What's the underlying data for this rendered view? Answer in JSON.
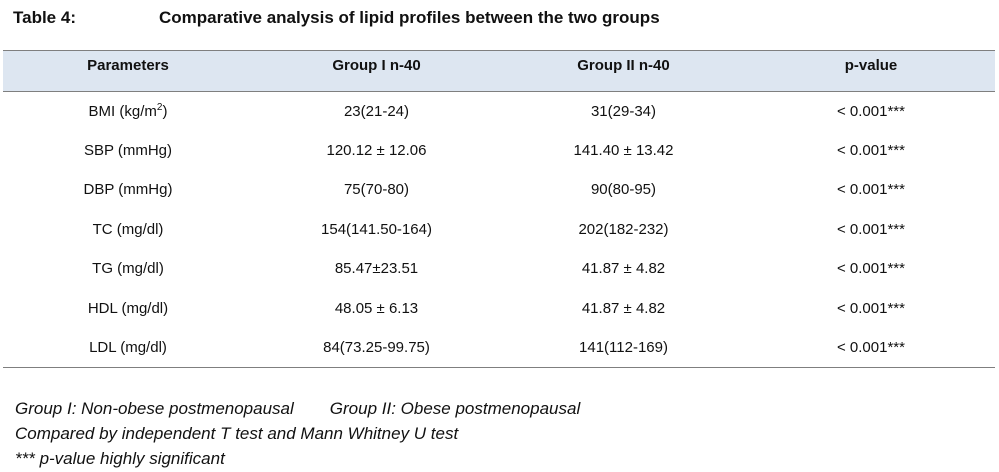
{
  "caption": {
    "label": "Table 4:",
    "title": "Comparative analysis of lipid profiles between the two groups"
  },
  "table": {
    "headers": [
      "Parameters",
      "Group I n-40",
      "Group II n-40",
      "p-value"
    ],
    "rows": [
      {
        "param": "BMI (kg/m",
        "param_sup": "2",
        "param_tail": ")",
        "g1": "23(21-24)",
        "g2": "31(29-34)",
        "p": "< 0.001***"
      },
      {
        "param": "SBP (mmHg)",
        "g1": "120.12 ± 12.06",
        "g2": "141.40 ± 13.42",
        "p": "< 0.001***"
      },
      {
        "param": "DBP (mmHg)",
        "g1": "75(70-80)",
        "g2": "90(80-95)",
        "p": "< 0.001***"
      },
      {
        "param": "TC (mg/dl)",
        "g1": "154(141.50-164)",
        "g2": "202(182-232)",
        "p": "< 0.001***"
      },
      {
        "param": "TG (mg/dl)",
        "g1": "85.47±23.51",
        "g2": "41.87 ± 4.82",
        "p": "< 0.001***"
      },
      {
        "param": "HDL (mg/dl)",
        "g1": "48.05 ± 6.13",
        "g2": "41.87 ± 4.82",
        "p": "< 0.001***"
      },
      {
        "param": "LDL (mg/dl)",
        "g1": "84(73.25-99.75)",
        "g2": "141(112-169)",
        "p": "< 0.001***"
      }
    ]
  },
  "notes": {
    "group1": "Group I: Non-obese postmenopausal",
    "group2": "Group II: Obese postmenopausal",
    "tests": "Compared by independent T test and Mann Whitney U test",
    "significance": "*** p-value highly significant"
  },
  "colors": {
    "header_bg": "#dde6f1",
    "rule": "#7f7f7f"
  }
}
